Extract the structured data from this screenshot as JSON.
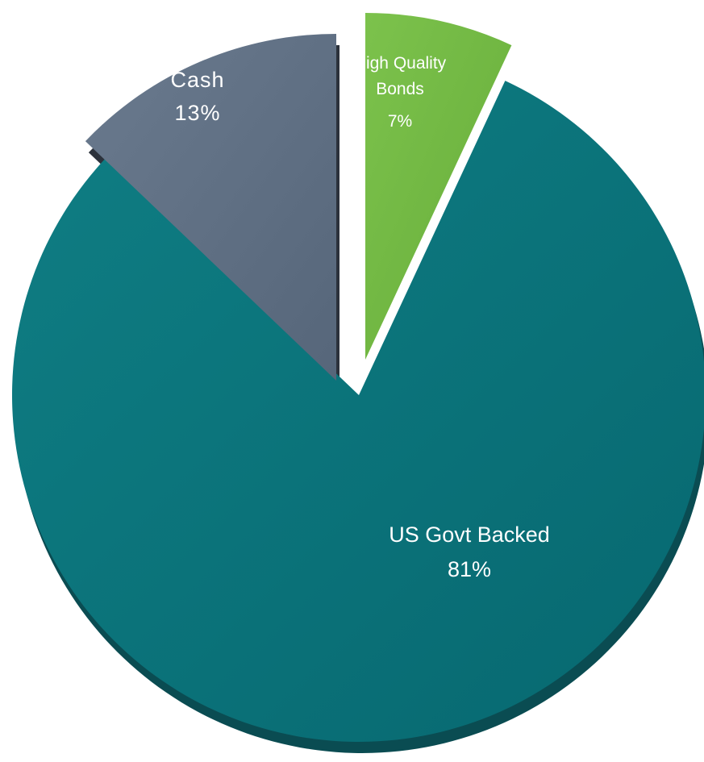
{
  "chart_data": {
    "type": "pie",
    "title": "",
    "slices": [
      {
        "label": "US Govt Backed",
        "value": 81,
        "value_label": "81%",
        "color": "#0b7279",
        "exploded": false
      },
      {
        "label": "Cash",
        "value": 13,
        "value_label": "13%",
        "color": "#5f6e82",
        "exploded": true
      },
      {
        "label": "High Quality Bonds",
        "value": 7,
        "value_label": "7%",
        "color": "#72b944",
        "exploded": true
      }
    ],
    "legend": "none",
    "style": "3d-exploded"
  },
  "labels": {
    "us_govt": {
      "name": "US Govt Backed",
      "pct": "81%"
    },
    "cash": {
      "name": "Cash",
      "pct": "13%"
    },
    "hq_bonds": {
      "name_line1": "High Quality",
      "name_line2": "Bonds",
      "pct": "7%"
    }
  }
}
